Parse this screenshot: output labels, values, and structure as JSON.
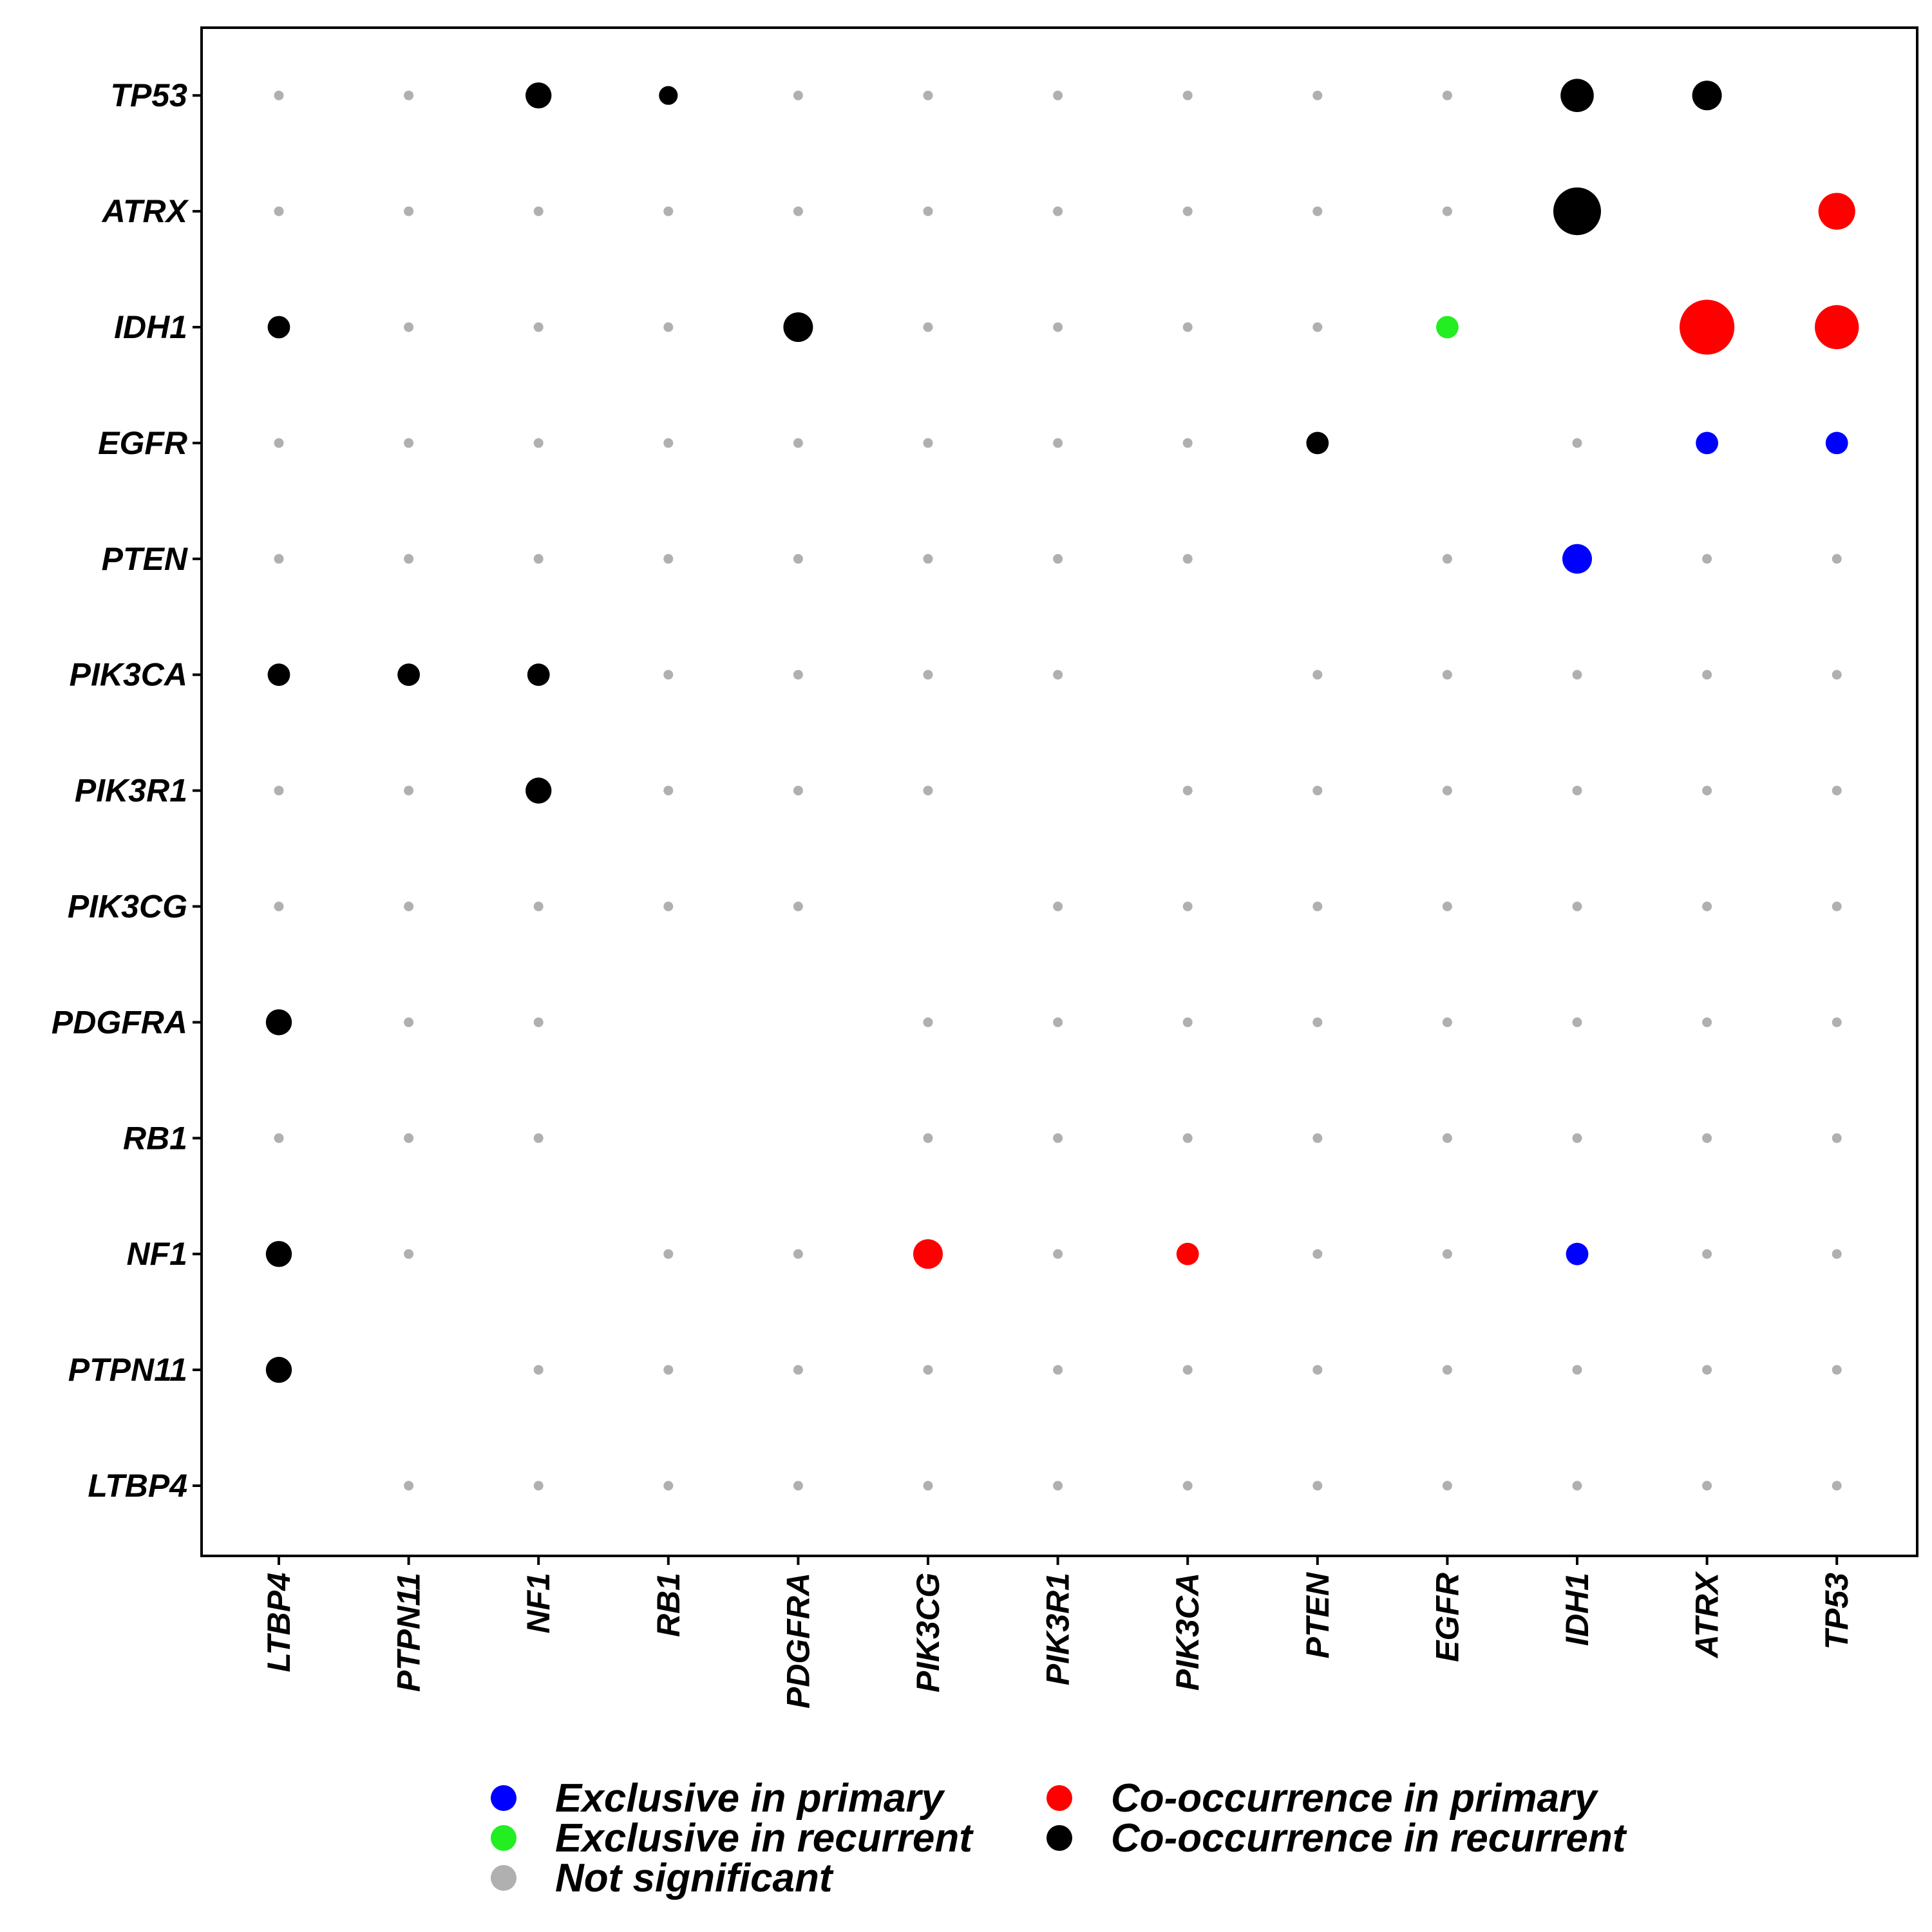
{
  "chart_data": {
    "type": "scatter",
    "title": "",
    "xlabel": "",
    "ylabel": "",
    "x_categories": [
      "LTBP4",
      "PTPN11",
      "NF1",
      "RB1",
      "PDGFRA",
      "PIK3CG",
      "PIK3R1",
      "PIK3CA",
      "PTEN",
      "EGFR",
      "IDH1",
      "ATRX",
      "TP53"
    ],
    "y_categories": [
      "LTBP4",
      "PTPN11",
      "NF1",
      "RB1",
      "PDGFRA",
      "PIK3CG",
      "PIK3R1",
      "PIK3CA",
      "PTEN",
      "EGFR",
      "IDH1",
      "ATRX",
      "TP53"
    ],
    "grid": false,
    "legend_position": "bottom",
    "legend": [
      {
        "label": "Exclusive in primary",
        "category": "exclusive_primary",
        "color": "#0000FF"
      },
      {
        "label": "Exclusive in recurrent",
        "category": "exclusive_recurrent",
        "color": "#22EE22"
      },
      {
        "label": "Not significant",
        "category": "not_significant",
        "color": "#B0B0B0"
      },
      {
        "label": "Co-occurrence in primary",
        "category": "cooccurrence_primary",
        "color": "#FF0000"
      },
      {
        "label": "Co-occurrence in recurrent",
        "category": "cooccurrence_recurrent",
        "color": "#000000"
      }
    ],
    "significant_points": [
      {
        "y": "TP53",
        "x": "NF1",
        "category": "cooccurrence_recurrent",
        "size": 2
      },
      {
        "y": "TP53",
        "x": "RB1",
        "category": "cooccurrence_recurrent",
        "size": 1
      },
      {
        "y": "TP53",
        "x": "IDH1",
        "category": "cooccurrence_recurrent",
        "size": 3
      },
      {
        "y": "TP53",
        "x": "ATRX",
        "category": "cooccurrence_recurrent",
        "size": 2.5
      },
      {
        "y": "ATRX",
        "x": "IDH1",
        "category": "cooccurrence_recurrent",
        "size": 5
      },
      {
        "y": "ATRX",
        "x": "TP53",
        "category": "cooccurrence_primary",
        "size": 3.5
      },
      {
        "y": "IDH1",
        "x": "LTBP4",
        "category": "cooccurrence_recurrent",
        "size": 1.5
      },
      {
        "y": "IDH1",
        "x": "PDGFRA",
        "category": "cooccurrence_recurrent",
        "size": 2.5
      },
      {
        "y": "IDH1",
        "x": "EGFR",
        "category": "exclusive_recurrent",
        "size": 1.5
      },
      {
        "y": "IDH1",
        "x": "ATRX",
        "category": "cooccurrence_primary",
        "size": 6
      },
      {
        "y": "IDH1",
        "x": "TP53",
        "category": "cooccurrence_primary",
        "size": 4.5
      },
      {
        "y": "EGFR",
        "x": "PTEN",
        "category": "cooccurrence_recurrent",
        "size": 1.5
      },
      {
        "y": "EGFR",
        "x": "ATRX",
        "category": "exclusive_primary",
        "size": 1.5
      },
      {
        "y": "EGFR",
        "x": "TP53",
        "category": "exclusive_primary",
        "size": 1.5
      },
      {
        "y": "PTEN",
        "x": "IDH1",
        "category": "exclusive_primary",
        "size": 2.5
      },
      {
        "y": "PIK3CA",
        "x": "LTBP4",
        "category": "cooccurrence_recurrent",
        "size": 1.5
      },
      {
        "y": "PIK3CA",
        "x": "PTPN11",
        "category": "cooccurrence_recurrent",
        "size": 1.5
      },
      {
        "y": "PIK3CA",
        "x": "NF1",
        "category": "cooccurrence_recurrent",
        "size": 1.5
      },
      {
        "y": "PIK3R1",
        "x": "NF1",
        "category": "cooccurrence_recurrent",
        "size": 2
      },
      {
        "y": "PDGFRA",
        "x": "LTBP4",
        "category": "cooccurrence_recurrent",
        "size": 2
      },
      {
        "y": "NF1",
        "x": "LTBP4",
        "category": "cooccurrence_recurrent",
        "size": 2
      },
      {
        "y": "NF1",
        "x": "PIK3CG",
        "category": "cooccurrence_primary",
        "size": 2.5
      },
      {
        "y": "NF1",
        "x": "PIK3CA",
        "category": "cooccurrence_primary",
        "size": 1.5
      },
      {
        "y": "NF1",
        "x": "IDH1",
        "category": "exclusive_primary",
        "size": 1.5
      },
      {
        "y": "PTPN11",
        "x": "LTBP4",
        "category": "cooccurrence_recurrent",
        "size": 2
      }
    ],
    "empty_cells": [
      {
        "y": "TP53",
        "x": "TP53"
      },
      {
        "y": "ATRX",
        "x": "ATRX"
      },
      {
        "y": "IDH1",
        "x": "IDH1"
      },
      {
        "y": "EGFR",
        "x": "EGFR"
      },
      {
        "y": "PTEN",
        "x": "PTEN"
      },
      {
        "y": "PIK3CA",
        "x": "PIK3CA"
      },
      {
        "y": "PIK3R1",
        "x": "PIK3R1"
      },
      {
        "y": "PIK3CG",
        "x": "PIK3CG"
      },
      {
        "y": "PDGFRA",
        "x": "PDGFRA"
      },
      {
        "y": "RB1",
        "x": "RB1"
      },
      {
        "y": "RB1",
        "x": "PDGFRA"
      },
      {
        "y": "PDGFRA",
        "x": "RB1"
      },
      {
        "y": "NF1",
        "x": "NF1"
      },
      {
        "y": "PTPN11",
        "x": "PTPN11"
      },
      {
        "y": "LTBP4",
        "x": "LTBP4"
      }
    ],
    "default_category": "not_significant"
  }
}
